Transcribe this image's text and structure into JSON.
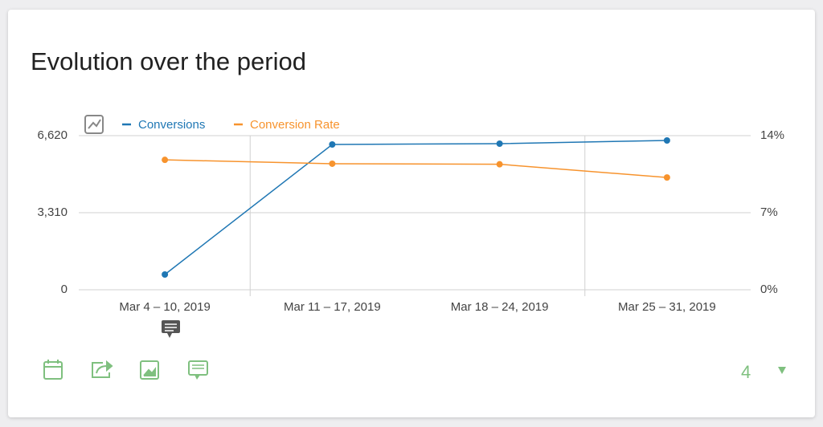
{
  "chart_data": {
    "type": "line",
    "title": "Evolution over the period",
    "categories": [
      "Mar 4 – 10, 2019",
      "Mar 11 – 17, 2019",
      "Mar 18 – 24, 2019",
      "Mar 25 – 31, 2019"
    ],
    "series": [
      {
        "name": "Conversions",
        "color": "#1f77b4",
        "values": [
          655,
          6241,
          6275,
          6413
        ]
      },
      {
        "name": "Conversion Rate",
        "color": "#f7932d",
        "axis": "y2",
        "values": [
          11.8,
          11.45,
          11.4,
          10.2
        ]
      }
    ],
    "ylim": [
      0,
      6620
    ],
    "yticks": [
      0,
      {
        "value": 3310,
        "label": "3,310"
      },
      {
        "value": 6620,
        "label": "6,620"
      }
    ],
    "y2lim": [
      0,
      14
    ],
    "y2ticks": [
      {
        "value": 0,
        "label": "0%"
      },
      {
        "value": 7,
        "label": "7%"
      },
      {
        "value": 14,
        "label": "14%"
      }
    ],
    "grid": true
  },
  "footer": {
    "limit": "4"
  }
}
